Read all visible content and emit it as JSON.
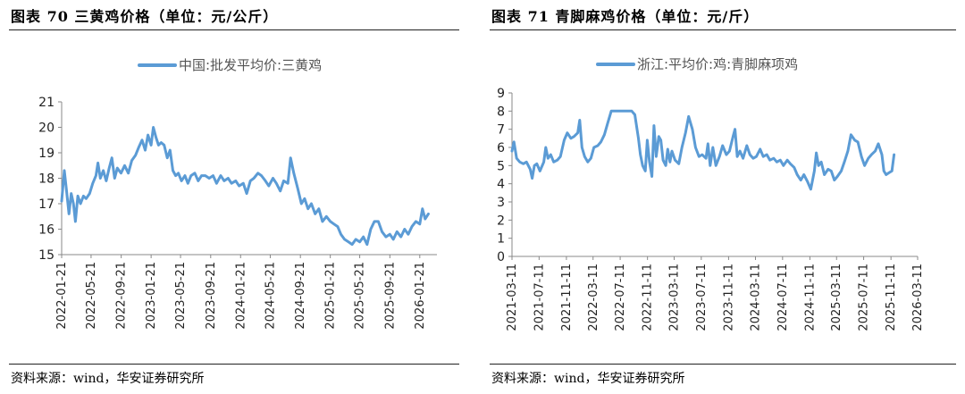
{
  "left": {
    "fig_title": "图表 70 三黄鸡价格（单位：元/公斤）",
    "source": "资料来源：wind，华安证券研究所",
    "chart_data": {
      "type": "line",
      "title": "图表 70 三黄鸡价格（单位：元/公斤）",
      "ylim": [
        15,
        21
      ],
      "yticks": [
        15,
        16,
        17,
        18,
        19,
        20,
        21
      ],
      "xlim": [
        "2022-01-21",
        "2026-04-01"
      ],
      "xticks": [
        "2022-01-21",
        "2022-05-21",
        "2022-09-21",
        "2023-01-21",
        "2023-05-21",
        "2023-09-21",
        "2024-01-21",
        "2024-05-21",
        "2024-09-21",
        "2025-01-21",
        "2025-05-21",
        "2025-09-21",
        "2026-01-21"
      ],
      "legend_position": "top-center",
      "series": [
        {
          "name": "中国:批发平均价:三黄鸡",
          "color": "#5b9bd5",
          "points": [
            [
              "2022-01-21",
              17.1
            ],
            [
              "2022-02-01",
              18.3
            ],
            [
              "2022-02-10",
              17.5
            ],
            [
              "2022-02-20",
              16.6
            ],
            [
              "2022-03-01",
              17.4
            ],
            [
              "2022-03-10",
              17.0
            ],
            [
              "2022-03-18",
              16.3
            ],
            [
              "2022-03-28",
              17.3
            ],
            [
              "2022-04-08",
              17.0
            ],
            [
              "2022-04-20",
              17.3
            ],
            [
              "2022-05-01",
              17.2
            ],
            [
              "2022-05-15",
              17.4
            ],
            [
              "2022-05-28",
              17.8
            ],
            [
              "2022-06-10",
              18.1
            ],
            [
              "2022-06-18",
              18.6
            ],
            [
              "2022-06-28",
              18.0
            ],
            [
              "2022-07-10",
              18.3
            ],
            [
              "2022-07-22",
              17.9
            ],
            [
              "2022-08-03",
              18.4
            ],
            [
              "2022-08-14",
              18.8
            ],
            [
              "2022-08-25",
              18.0
            ],
            [
              "2022-09-05",
              18.4
            ],
            [
              "2022-09-20",
              18.2
            ],
            [
              "2022-10-05",
              18.5
            ],
            [
              "2022-10-20",
              18.2
            ],
            [
              "2022-11-03",
              18.7
            ],
            [
              "2022-11-18",
              18.9
            ],
            [
              "2022-12-01",
              19.2
            ],
            [
              "2022-12-15",
              19.5
            ],
            [
              "2022-12-28",
              19.1
            ],
            [
              "2023-01-08",
              19.7
            ],
            [
              "2023-01-21",
              19.3
            ],
            [
              "2023-01-30",
              20.0
            ],
            [
              "2023-02-10",
              19.6
            ],
            [
              "2023-02-20",
              19.3
            ],
            [
              "2023-03-03",
              19.4
            ],
            [
              "2023-03-15",
              19.3
            ],
            [
              "2023-03-28",
              18.8
            ],
            [
              "2023-04-08",
              19.1
            ],
            [
              "2023-04-20",
              18.3
            ],
            [
              "2023-05-01",
              18.1
            ],
            [
              "2023-05-12",
              18.2
            ],
            [
              "2023-05-25",
              17.9
            ],
            [
              "2023-06-08",
              18.1
            ],
            [
              "2023-06-20",
              17.8
            ],
            [
              "2023-07-03",
              18.1
            ],
            [
              "2023-07-18",
              18.2
            ],
            [
              "2023-08-01",
              17.9
            ],
            [
              "2023-08-15",
              18.1
            ],
            [
              "2023-08-30",
              18.1
            ],
            [
              "2023-09-15",
              18.0
            ],
            [
              "2023-10-01",
              18.1
            ],
            [
              "2023-10-15",
              17.8
            ],
            [
              "2023-11-01",
              18.1
            ],
            [
              "2023-11-15",
              17.9
            ],
            [
              "2023-12-01",
              18.0
            ],
            [
              "2023-12-15",
              17.8
            ],
            [
              "2024-01-01",
              17.9
            ],
            [
              "2024-01-15",
              17.7
            ],
            [
              "2024-02-01",
              17.8
            ],
            [
              "2024-02-15",
              17.4
            ],
            [
              "2024-03-01",
              17.9
            ],
            [
              "2024-03-15",
              18.0
            ],
            [
              "2024-04-01",
              18.2
            ],
            [
              "2024-04-15",
              18.1
            ],
            [
              "2024-05-01",
              17.9
            ],
            [
              "2024-05-15",
              17.7
            ],
            [
              "2024-06-01",
              18.0
            ],
            [
              "2024-06-15",
              17.8
            ],
            [
              "2024-07-01",
              17.5
            ],
            [
              "2024-07-15",
              17.9
            ],
            [
              "2024-08-01",
              17.8
            ],
            [
              "2024-08-12",
              18.8
            ],
            [
              "2024-08-25",
              18.2
            ],
            [
              "2024-09-10",
              17.6
            ],
            [
              "2024-09-25",
              17.0
            ],
            [
              "2024-10-08",
              17.2
            ],
            [
              "2024-10-22",
              16.8
            ],
            [
              "2024-11-05",
              17.0
            ],
            [
              "2024-11-20",
              16.6
            ],
            [
              "2024-12-05",
              16.8
            ],
            [
              "2024-12-20",
              16.3
            ],
            [
              "2025-01-05",
              16.5
            ],
            [
              "2025-01-21",
              16.3
            ],
            [
              "2025-02-05",
              16.2
            ],
            [
              "2025-02-20",
              16.1
            ],
            [
              "2025-03-05",
              15.8
            ],
            [
              "2025-03-20",
              15.6
            ],
            [
              "2025-04-05",
              15.5
            ],
            [
              "2025-04-20",
              15.4
            ],
            [
              "2025-05-05",
              15.6
            ],
            [
              "2025-05-21",
              15.5
            ],
            [
              "2025-06-05",
              15.7
            ],
            [
              "2025-06-20",
              15.4
            ],
            [
              "2025-07-05",
              16.0
            ],
            [
              "2025-07-20",
              16.3
            ],
            [
              "2025-08-05",
              16.3
            ],
            [
              "2025-08-20",
              15.9
            ],
            [
              "2025-09-05",
              15.7
            ],
            [
              "2025-09-21",
              15.8
            ],
            [
              "2025-10-05",
              15.6
            ],
            [
              "2025-10-20",
              15.9
            ],
            [
              "2025-11-05",
              15.7
            ],
            [
              "2025-11-20",
              16.0
            ],
            [
              "2025-12-05",
              15.8
            ],
            [
              "2025-12-20",
              16.1
            ],
            [
              "2026-01-05",
              16.3
            ],
            [
              "2026-01-21",
              16.2
            ],
            [
              "2026-02-01",
              16.8
            ],
            [
              "2026-02-12",
              16.4
            ],
            [
              "2026-02-25",
              16.6
            ]
          ]
        }
      ]
    }
  },
  "right": {
    "fig_title": "图表 71 青脚麻鸡价格（单位：元/斤）",
    "source": "资料来源：wind，华安证券研究所",
    "chart_data": {
      "type": "line",
      "title": "图表 71 青脚麻鸡价格（单位：元/斤）",
      "ylim": [
        0,
        9
      ],
      "yticks": [
        0,
        1,
        2,
        3,
        4,
        5,
        6,
        7,
        8,
        9
      ],
      "xlim": [
        "2021-03-11",
        "2026-03-11"
      ],
      "xticks": [
        "2021-03-11",
        "2021-07-11",
        "2021-11-11",
        "2022-03-11",
        "2022-07-11",
        "2022-11-11",
        "2023-03-11",
        "2023-07-11",
        "2023-11-11",
        "2024-03-11",
        "2024-07-11",
        "2024-11-11",
        "2025-03-11",
        "2025-07-11",
        "2025-11-11",
        "2026-03-11"
      ],
      "legend_position": "top-center",
      "series": [
        {
          "name": "浙江:平均价:鸡:青脚麻项鸡",
          "color": "#5b9bd5",
          "points": [
            [
              "2021-03-11",
              5.8
            ],
            [
              "2021-03-20",
              6.3
            ],
            [
              "2021-04-01",
              5.4
            ],
            [
              "2021-04-15",
              5.2
            ],
            [
              "2021-05-01",
              5.1
            ],
            [
              "2021-05-15",
              5.2
            ],
            [
              "2021-06-01",
              4.8
            ],
            [
              "2021-06-10",
              4.3
            ],
            [
              "2021-06-20",
              5.0
            ],
            [
              "2021-07-01",
              5.1
            ],
            [
              "2021-07-15",
              4.7
            ],
            [
              "2021-08-01",
              5.2
            ],
            [
              "2021-08-10",
              6.0
            ],
            [
              "2021-08-20",
              5.4
            ],
            [
              "2021-09-01",
              5.6
            ],
            [
              "2021-09-15",
              5.2
            ],
            [
              "2021-10-01",
              5.3
            ],
            [
              "2021-10-15",
              5.5
            ],
            [
              "2021-11-01",
              6.4
            ],
            [
              "2021-11-15",
              6.8
            ],
            [
              "2021-12-01",
              6.5
            ],
            [
              "2021-12-15",
              6.6
            ],
            [
              "2022-01-01",
              6.8
            ],
            [
              "2022-01-10",
              7.5
            ],
            [
              "2022-01-20",
              6.0
            ],
            [
              "2022-02-01",
              5.5
            ],
            [
              "2022-02-15",
              5.2
            ],
            [
              "2022-03-01",
              5.4
            ],
            [
              "2022-03-15",
              6.0
            ],
            [
              "2022-04-01",
              6.1
            ],
            [
              "2022-04-15",
              6.3
            ],
            [
              "2022-05-01",
              6.7
            ],
            [
              "2022-05-15",
              7.3
            ],
            [
              "2022-06-01",
              8.0
            ],
            [
              "2022-06-15",
              8.0
            ],
            [
              "2022-07-01",
              8.0
            ],
            [
              "2022-07-15",
              8.0
            ],
            [
              "2022-08-01",
              8.0
            ],
            [
              "2022-08-15",
              8.0
            ],
            [
              "2022-09-01",
              8.0
            ],
            [
              "2022-09-15",
              7.8
            ],
            [
              "2022-10-01",
              6.5
            ],
            [
              "2022-10-10",
              5.6
            ],
            [
              "2022-10-20",
              5.0
            ],
            [
              "2022-11-01",
              4.7
            ],
            [
              "2022-11-10",
              6.4
            ],
            [
              "2022-11-20",
              5.2
            ],
            [
              "2022-12-01",
              4.4
            ],
            [
              "2022-12-10",
              7.2
            ],
            [
              "2022-12-20",
              5.5
            ],
            [
              "2023-01-01",
              6.6
            ],
            [
              "2023-01-10",
              6.4
            ],
            [
              "2023-01-20",
              5.3
            ],
            [
              "2023-02-01",
              5.0
            ],
            [
              "2023-02-10",
              5.9
            ],
            [
              "2023-02-20",
              5.2
            ],
            [
              "2023-03-01",
              5.8
            ],
            [
              "2023-03-15",
              5.3
            ],
            [
              "2023-04-01",
              5.1
            ],
            [
              "2023-04-15",
              6.0
            ],
            [
              "2023-05-01",
              6.8
            ],
            [
              "2023-05-15",
              7.7
            ],
            [
              "2023-06-01",
              7.0
            ],
            [
              "2023-06-15",
              6.0
            ],
            [
              "2023-07-01",
              5.5
            ],
            [
              "2023-07-15",
              5.6
            ],
            [
              "2023-08-01",
              5.4
            ],
            [
              "2023-08-10",
              6.2
            ],
            [
              "2023-08-20",
              5.0
            ],
            [
              "2023-09-01",
              6.0
            ],
            [
              "2023-09-15",
              5.0
            ],
            [
              "2023-10-01",
              5.5
            ],
            [
              "2023-10-15",
              6.1
            ],
            [
              "2023-11-01",
              5.6
            ],
            [
              "2023-11-15",
              5.8
            ],
            [
              "2023-12-01",
              6.6
            ],
            [
              "2023-12-10",
              7.0
            ],
            [
              "2023-12-20",
              5.5
            ],
            [
              "2024-01-01",
              5.8
            ],
            [
              "2024-01-15",
              5.4
            ],
            [
              "2024-02-01",
              6.1
            ],
            [
              "2024-02-15",
              5.6
            ],
            [
              "2024-03-01",
              5.4
            ],
            [
              "2024-03-15",
              5.5
            ],
            [
              "2024-04-01",
              5.9
            ],
            [
              "2024-04-15",
              5.5
            ],
            [
              "2024-05-01",
              5.6
            ],
            [
              "2024-05-15",
              5.3
            ],
            [
              "2024-06-01",
              5.4
            ],
            [
              "2024-06-15",
              5.2
            ],
            [
              "2024-07-01",
              5.3
            ],
            [
              "2024-07-15",
              5.0
            ],
            [
              "2024-08-01",
              5.3
            ],
            [
              "2024-08-15",
              5.1
            ],
            [
              "2024-09-01",
              4.9
            ],
            [
              "2024-09-15",
              4.5
            ],
            [
              "2024-10-01",
              4.2
            ],
            [
              "2024-10-15",
              4.5
            ],
            [
              "2024-11-01",
              4.1
            ],
            [
              "2024-11-15",
              3.7
            ],
            [
              "2024-12-01",
              4.7
            ],
            [
              "2024-12-10",
              5.7
            ],
            [
              "2024-12-20",
              5.0
            ],
            [
              "2025-01-01",
              5.2
            ],
            [
              "2025-01-15",
              4.5
            ],
            [
              "2025-02-01",
              4.8
            ],
            [
              "2025-02-15",
              4.7
            ],
            [
              "2025-03-01",
              4.2
            ],
            [
              "2025-03-15",
              4.4
            ],
            [
              "2025-04-01",
              4.7
            ],
            [
              "2025-04-15",
              5.2
            ],
            [
              "2025-05-01",
              5.8
            ],
            [
              "2025-05-15",
              6.7
            ],
            [
              "2025-06-01",
              6.4
            ],
            [
              "2025-06-15",
              6.3
            ],
            [
              "2025-07-01",
              5.5
            ],
            [
              "2025-07-15",
              5.0
            ],
            [
              "2025-08-01",
              5.4
            ],
            [
              "2025-08-15",
              5.6
            ],
            [
              "2025-09-01",
              5.8
            ],
            [
              "2025-09-15",
              6.2
            ],
            [
              "2025-10-01",
              5.6
            ],
            [
              "2025-10-10",
              4.7
            ],
            [
              "2025-10-20",
              4.5
            ],
            [
              "2025-11-01",
              4.6
            ],
            [
              "2025-11-15",
              4.7
            ],
            [
              "2025-11-25",
              5.6
            ]
          ]
        }
      ]
    }
  }
}
